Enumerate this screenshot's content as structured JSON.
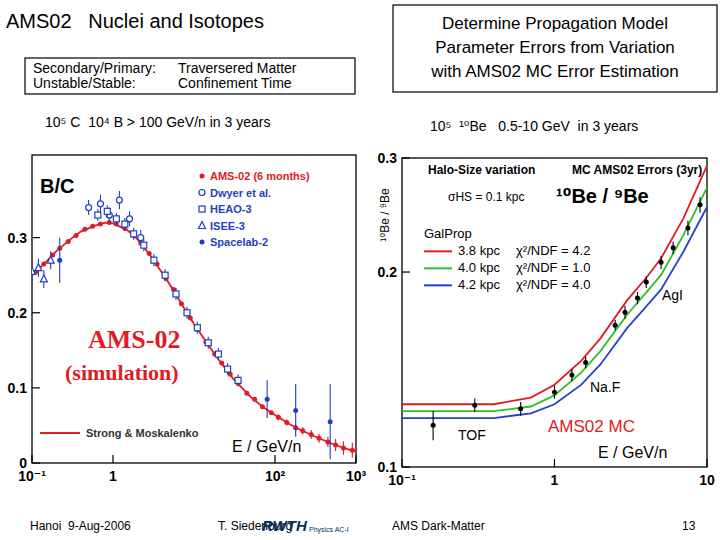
{
  "slide": {
    "title": "AMS02   Nuclei and Isotopes",
    "box_left": {
      "rows": [
        [
          "Secondary/Primary:",
          "Traversered Matter"
        ],
        [
          "Unstable/Stable:",
          "Confinement Time"
        ]
      ]
    },
    "box_right": {
      "lines": [
        "Determine Propagation Model",
        "Parameter Errors from Variation",
        "with AMS02 MC Error Estimation"
      ]
    },
    "stats_left": "10⁵ C  10⁴ B > 100 GeV/n in 3 years",
    "stats_right": "10⁵  ¹⁰Be   0.5-10 GeV  in 3 years",
    "footer": {
      "place": "Hanoi  9-Aug-2006",
      "author": "T. Siedenburg",
      "logo": "RWTH",
      "logo_sub": "Physics AC-I",
      "topic": "AMS Dark-Matter",
      "page": 13
    }
  },
  "chart_data": [
    {
      "type": "scatter",
      "title": "B/C",
      "xlabel": "E / GeV/n",
      "log": "x",
      "xlim": [
        0.1,
        1000
      ],
      "ylim": [
        0,
        0.41
      ],
      "xticks": [
        {
          "value": 0.1,
          "label": "10⁻¹"
        },
        1,
        {
          "value": 100,
          "label": "10²"
        },
        {
          "value": 1000,
          "label": "10³"
        }
      ],
      "yticks": [
        0,
        0.1,
        0.2,
        0.3
      ],
      "grid": false,
      "legend": "upper right",
      "annotations": {
        "sim1": "AMS-02",
        "sim2": "(simulation)"
      },
      "series": [
        {
          "name": "Strong & Moskalenko",
          "type": "line",
          "color": "#e01b24",
          "line_style": "solid",
          "x": [
            0.1,
            0.15,
            0.2,
            0.3,
            0.4,
            0.6,
            0.8,
            1,
            1.5,
            2,
            3,
            5,
            7,
            10,
            15,
            20,
            30,
            50,
            70,
            100,
            150,
            200,
            300,
            500,
            700,
            1000
          ],
          "values": [
            0.25,
            0.268,
            0.282,
            0.298,
            0.308,
            0.316,
            0.32,
            0.319,
            0.31,
            0.298,
            0.274,
            0.238,
            0.212,
            0.185,
            0.157,
            0.138,
            0.113,
            0.088,
            0.075,
            0.064,
            0.052,
            0.045,
            0.036,
            0.026,
            0.02,
            0.015
          ]
        },
        {
          "name": "AMS-02 (6 months)",
          "type": "scatter",
          "color": "#e01b24",
          "marker": "circle",
          "x": [
            0.11,
            0.14,
            0.18,
            0.22,
            0.28,
            0.35,
            0.45,
            0.56,
            0.7,
            0.9,
            1.1,
            1.4,
            1.8,
            2.2,
            2.8,
            3.5,
            4.5,
            5.6,
            7,
            9,
            11,
            14,
            18,
            22,
            28,
            35,
            45,
            56,
            70,
            90,
            110,
            140,
            180,
            220,
            280,
            350,
            450,
            560,
            700,
            900
          ],
          "values": [
            0.254,
            0.265,
            0.277,
            0.286,
            0.295,
            0.303,
            0.311,
            0.315,
            0.318,
            0.32,
            0.318,
            0.312,
            0.303,
            0.293,
            0.279,
            0.265,
            0.246,
            0.231,
            0.212,
            0.193,
            0.178,
            0.161,
            0.145,
            0.133,
            0.118,
            0.106,
            0.093,
            0.085,
            0.075,
            0.067,
            0.061,
            0.054,
            0.047,
            0.043,
            0.038,
            0.033,
            0.028,
            0.024,
            0.02,
            0.017
          ],
          "errors": [
            0.002,
            0.002,
            0.002,
            0.002,
            0.002,
            0.002,
            0.002,
            0.002,
            0.002,
            0.002,
            0.002,
            0.002,
            0.002,
            0.002,
            0.002,
            0.002,
            0.002,
            0.002,
            0.002,
            0.002,
            0.002,
            0.002,
            0.002,
            0.002,
            0.002,
            0.002,
            0.002,
            0.003,
            0.003,
            0.003,
            0.004,
            0.004,
            0.005,
            0.005,
            0.006,
            0.006,
            0.007,
            0.008,
            0.009,
            0.01
          ]
        },
        {
          "name": "Dwyer et al.",
          "type": "scatter",
          "color": "#1f3fbf",
          "marker": "circle-open",
          "x": [
            0.5,
            0.7,
            0.9,
            1.2,
            1.6,
            2.2
          ],
          "values": [
            0.34,
            0.345,
            0.33,
            0.35,
            0.325,
            0.3
          ],
          "errors": [
            0.01,
            0.012,
            0.01,
            0.012,
            0.01,
            0.01
          ]
        },
        {
          "name": "HEAO-3",
          "type": "scatter",
          "color": "#1f3fbf",
          "marker": "square-open",
          "x": [
            0.65,
            0.85,
            1.1,
            1.4,
            1.8,
            2.4,
            3.2,
            4.4,
            6,
            8.2,
            11,
            15,
            20,
            26,
            35
          ],
          "values": [
            0.33,
            0.335,
            0.325,
            0.318,
            0.305,
            0.29,
            0.27,
            0.25,
            0.225,
            0.2,
            0.18,
            0.16,
            0.145,
            0.125,
            0.11
          ],
          "errors": [
            0.008,
            0.008,
            0.008,
            0.008,
            0.008,
            0.008,
            0.008,
            0.008,
            0.008,
            0.008,
            0.008,
            0.008,
            0.008,
            0.008,
            0.008
          ]
        },
        {
          "name": "ISEE-3",
          "type": "scatter",
          "color": "#1f3fbf",
          "marker": "triangle-open",
          "x": [
            0.1,
            0.12,
            0.14,
            0.17
          ],
          "values": [
            0.255,
            0.26,
            0.245,
            0.27
          ],
          "errors": [
            0.012,
            0.012,
            0.012,
            0.012
          ]
        },
        {
          "name": "Spacelab-2",
          "type": "scatter",
          "color": "#1f3fbf",
          "marker": "circle",
          "x": [
            0.22,
            80,
            180,
            480
          ],
          "values": [
            0.27,
            0.085,
            0.07,
            0.055
          ],
          "errors": [
            0.03,
            0.025,
            0.035,
            0.05
          ]
        }
      ]
    },
    {
      "type": "scatter",
      "title": "¹⁰Be / ⁹Be",
      "xlabel": "E / GeV/n",
      "ylabel": "¹⁰Be / ⁹Be",
      "log": true,
      "xlim": [
        0.1,
        10
      ],
      "ylim": [
        0.1,
        0.3
      ],
      "xticks": [
        {
          "value": 0.1,
          "label": "10⁻¹"
        },
        1,
        10
      ],
      "yticks": [
        0.1,
        0.2,
        0.3
      ],
      "grid": false,
      "legend": "center left",
      "legend_title": "GalProp",
      "annotations": {
        "halo": "Halo-Size variation",
        "errors": "MC AMS02 Errors (3yr)",
        "sigma": "σHS = 0.1 kpc",
        "agl": "AgI",
        "naf": "Na.F",
        "tof": "TOF"
      },
      "series": [
        {
          "name": "3.8 kpc",
          "label": "χ²/NDF = 4.2",
          "type": "line",
          "color": "#e01b24",
          "line_style": "solid",
          "x": [
            0.1,
            0.2,
            0.4,
            0.7,
            1,
            1.5,
            2,
            3,
            4,
            5,
            7,
            10
          ],
          "values": [
            0.125,
            0.125,
            0.125,
            0.128,
            0.134,
            0.146,
            0.158,
            0.181,
            0.196,
            0.21,
            0.242,
            0.292
          ]
        },
        {
          "name": "4.0 kpc",
          "label": "χ²/NDF = 1.0",
          "type": "line",
          "color": "#2fbf2f",
          "line_style": "solid",
          "x": [
            0.1,
            0.2,
            0.4,
            0.7,
            1,
            1.5,
            2,
            3,
            4,
            5,
            7,
            10
          ],
          "values": [
            0.122,
            0.122,
            0.122,
            0.124,
            0.129,
            0.14,
            0.151,
            0.172,
            0.186,
            0.198,
            0.228,
            0.27
          ]
        },
        {
          "name": "4.2 kpc",
          "label": "χ²/NDF = 4.0",
          "type": "line",
          "color": "#2244cc",
          "line_style": "solid",
          "x": [
            0.1,
            0.2,
            0.4,
            0.7,
            1,
            1.5,
            2,
            3,
            4,
            5,
            7,
            10
          ],
          "values": [
            0.119,
            0.119,
            0.119,
            0.121,
            0.125,
            0.134,
            0.144,
            0.164,
            0.177,
            0.188,
            0.215,
            0.252
          ]
        },
        {
          "name": "AMS02 MC",
          "type": "scatter",
          "color": "#000000",
          "marker": "circle",
          "x": [
            0.16,
            0.3,
            0.6,
            1.0,
            1.3,
            1.6,
            2.5,
            2.9,
            3.5,
            4.0,
            5.0,
            6.0,
            7.5,
            9.0
          ],
          "values": [
            0.116,
            0.1246,
            0.123,
            0.1305,
            0.1387,
            0.145,
            0.1656,
            0.1734,
            0.1823,
            0.193,
            0.207,
            0.218,
            0.234,
            0.254
          ],
          "errors": [
            0.006,
            0.003,
            0.003,
            0.003,
            0.003,
            0.003,
            0.003,
            0.004,
            0.004,
            0.004,
            0.005,
            0.005,
            0.006,
            0.007
          ]
        }
      ]
    }
  ]
}
